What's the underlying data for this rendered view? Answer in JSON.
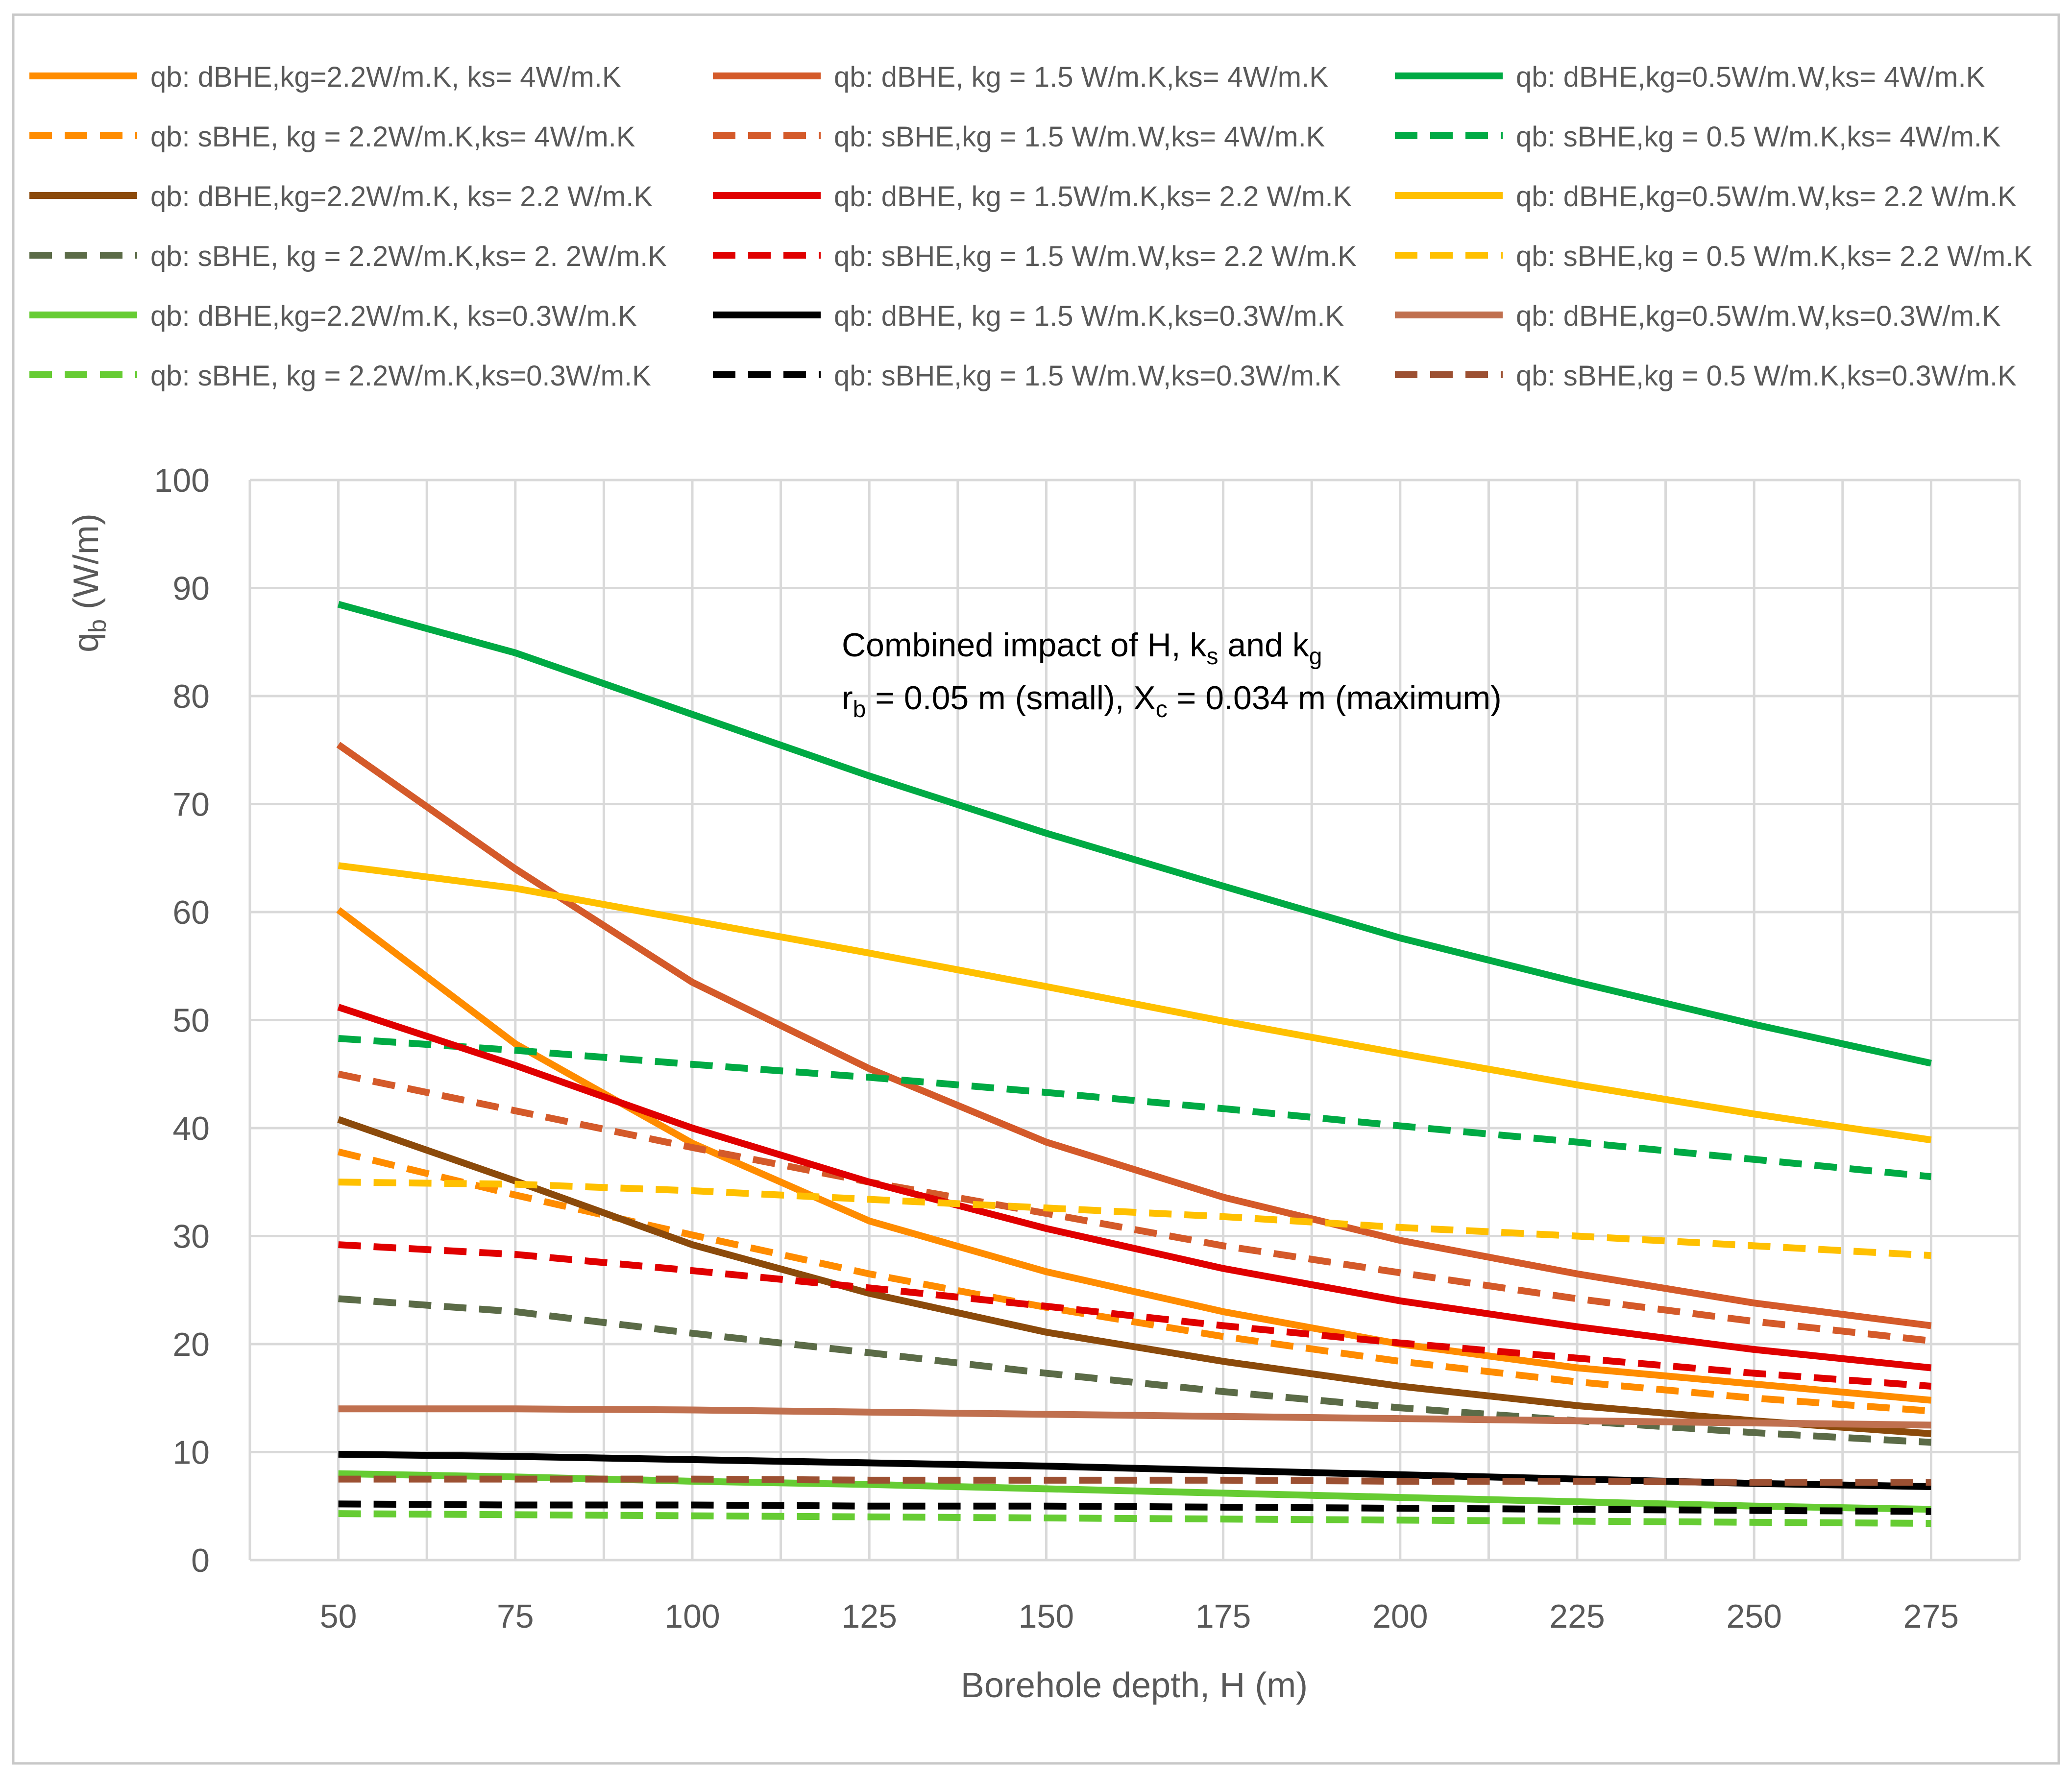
{
  "chart_data": {
    "type": "line",
    "title": "",
    "xlabel": "Borehole depth, H (m)",
    "ylabel": {
      "base": "q",
      "sub": "b",
      "rest": " (W/m)"
    },
    "x": [
      50,
      75,
      100,
      125,
      150,
      175,
      200,
      225,
      250,
      275
    ],
    "xlim": [
      37.5,
      287.5
    ],
    "ylim": [
      0,
      100
    ],
    "x_ticks": [
      "50",
      "75",
      "100",
      "125",
      "150",
      "175",
      "200",
      "225",
      "250",
      "275"
    ],
    "y_ticks": [
      "0",
      "10",
      "20",
      "30",
      "40",
      "50",
      "60",
      "70",
      "80",
      "90",
      "100"
    ],
    "grid": true,
    "legend_position": "top",
    "annotation": {
      "line1": {
        "pre": "Combined impact of H, k",
        "sub1": "s",
        "mid": " and k",
        "sub2": "g"
      },
      "line2": {
        "pre": "r",
        "sub1": "b",
        "mid": " = 0.05 m (small), X",
        "sub2": "c",
        "post": " = 0.034 m (maximum)"
      }
    },
    "series": [
      {
        "name": "qb: dBHE,kg=2.2W/m.K, ks= 4W/m.K",
        "color": "#FF8C00",
        "dash": false,
        "values": [
          60.2,
          47.8,
          38.6,
          31.4,
          26.7,
          23.0,
          20.0,
          17.8,
          16.3,
          14.8
        ]
      },
      {
        "name": "qb: dBHE, kg = 1.5 W/m.K,ks= 4W/m.K",
        "color": "#D45A2A",
        "dash": false,
        "values": [
          75.5,
          64.0,
          53.5,
          45.5,
          38.7,
          33.6,
          29.6,
          26.5,
          23.8,
          21.7
        ]
      },
      {
        "name": "qb: dBHE,kg=0.5W/m.W,ks= 4W/m.K",
        "color": "#00AA44",
        "dash": false,
        "values": [
          88.5,
          84.0,
          78.3,
          72.6,
          67.3,
          62.4,
          57.6,
          53.5,
          49.6,
          46.0
        ]
      },
      {
        "name": "qb: sBHE, kg = 2.2W/m.K,ks= 4W/m.K",
        "color": "#FF8C00",
        "dash": true,
        "values": [
          37.8,
          33.8,
          30.1,
          26.5,
          23.4,
          20.7,
          18.4,
          16.5,
          15.0,
          13.8
        ]
      },
      {
        "name": "qb: sBHE,kg = 1.5 W/m.W,ks= 4W/m.K",
        "color": "#D45A2A",
        "dash": true,
        "values": [
          45.0,
          41.6,
          38.2,
          35.0,
          32.1,
          29.1,
          26.6,
          24.2,
          22.1,
          20.3
        ]
      },
      {
        "name": "qb: sBHE,kg = 0.5 W/m.K,ks= 4W/m.K",
        "color": "#00AA44",
        "dash": true,
        "values": [
          48.3,
          47.2,
          45.9,
          44.7,
          43.3,
          41.8,
          40.2,
          38.7,
          37.1,
          35.5
        ]
      },
      {
        "name": "qb: dBHE,kg=2.2W/m.K, ks= 2.2 W/m.K",
        "color": "#8B4A0B",
        "dash": false,
        "values": [
          40.8,
          35.1,
          29.2,
          24.7,
          21.1,
          18.4,
          16.1,
          14.3,
          12.9,
          11.7
        ]
      },
      {
        "name": "qb: dBHE, kg = 1.5W/m.K,ks= 2.2 W/m.K",
        "color": "#E00000",
        "dash": false,
        "values": [
          51.2,
          45.8,
          40.0,
          35.0,
          30.7,
          27.0,
          24.0,
          21.6,
          19.5,
          17.8
        ]
      },
      {
        "name": "qb: dBHE,kg=0.5W/m.W,ks= 2.2 W/m.K",
        "color": "#FFC000",
        "dash": false,
        "values": [
          64.3,
          62.2,
          59.2,
          56.2,
          53.1,
          49.9,
          46.9,
          44.0,
          41.3,
          38.9
        ]
      },
      {
        "name": "qb: sBHE, kg = 2.2W/m.K,ks= 2. 2W/m.K",
        "color": "#5B6B47",
        "dash": true,
        "values": [
          24.2,
          23.0,
          21.0,
          19.2,
          17.3,
          15.6,
          14.1,
          12.9,
          11.8,
          10.9
        ]
      },
      {
        "name": "qb: sBHE,kg = 1.5 W/m.W,ks= 2.2 W/m.K",
        "color": "#E00000",
        "dash": true,
        "values": [
          29.2,
          28.3,
          26.8,
          25.2,
          23.5,
          21.7,
          20.1,
          18.7,
          17.3,
          16.1
        ]
      },
      {
        "name": "qb: sBHE,kg = 0.5 W/m.K,ks= 2.2 W/m.K",
        "color": "#FFC000",
        "dash": true,
        "values": [
          35.0,
          34.8,
          34.2,
          33.4,
          32.6,
          31.8,
          30.8,
          30.0,
          29.1,
          28.2
        ]
      },
      {
        "name": "qb: dBHE,kg=2.2W/m.K, ks=0.3W/m.K",
        "color": "#66CC33",
        "dash": false,
        "values": [
          8.0,
          7.7,
          7.3,
          7.0,
          6.6,
          6.2,
          5.8,
          5.4,
          5.0,
          4.7
        ]
      },
      {
        "name": "qb: dBHE, kg = 1.5 W/m.K,ks=0.3W/m.K",
        "color": "#000000",
        "dash": false,
        "values": [
          9.8,
          9.6,
          9.3,
          9.0,
          8.7,
          8.3,
          7.9,
          7.5,
          7.1,
          6.8
        ]
      },
      {
        "name": "qb: dBHE,kg=0.5W/m.W,ks=0.3W/m.K",
        "color": "#C0704F",
        "dash": false,
        "values": [
          14.0,
          14.0,
          13.9,
          13.7,
          13.5,
          13.3,
          13.1,
          12.9,
          12.7,
          12.5
        ]
      },
      {
        "name": "qb: sBHE, kg = 2.2W/m.K,ks=0.3W/m.K",
        "color": "#66CC33",
        "dash": true,
        "values": [
          4.3,
          4.2,
          4.1,
          4.0,
          3.9,
          3.8,
          3.7,
          3.6,
          3.5,
          3.4
        ]
      },
      {
        "name": "qb: sBHE,kg = 1.5 W/m.W,ks=0.3W/m.K",
        "color": "#000000",
        "dash": true,
        "values": [
          5.2,
          5.1,
          5.1,
          5.0,
          5.0,
          4.9,
          4.8,
          4.7,
          4.6,
          4.5
        ]
      },
      {
        "name": "qb: sBHE,kg = 0.5 W/m.K,ks=0.3W/m.K",
        "color": "#9C5032",
        "dash": true,
        "values": [
          7.5,
          7.5,
          7.5,
          7.4,
          7.4,
          7.4,
          7.3,
          7.3,
          7.2,
          7.2
        ]
      }
    ]
  }
}
